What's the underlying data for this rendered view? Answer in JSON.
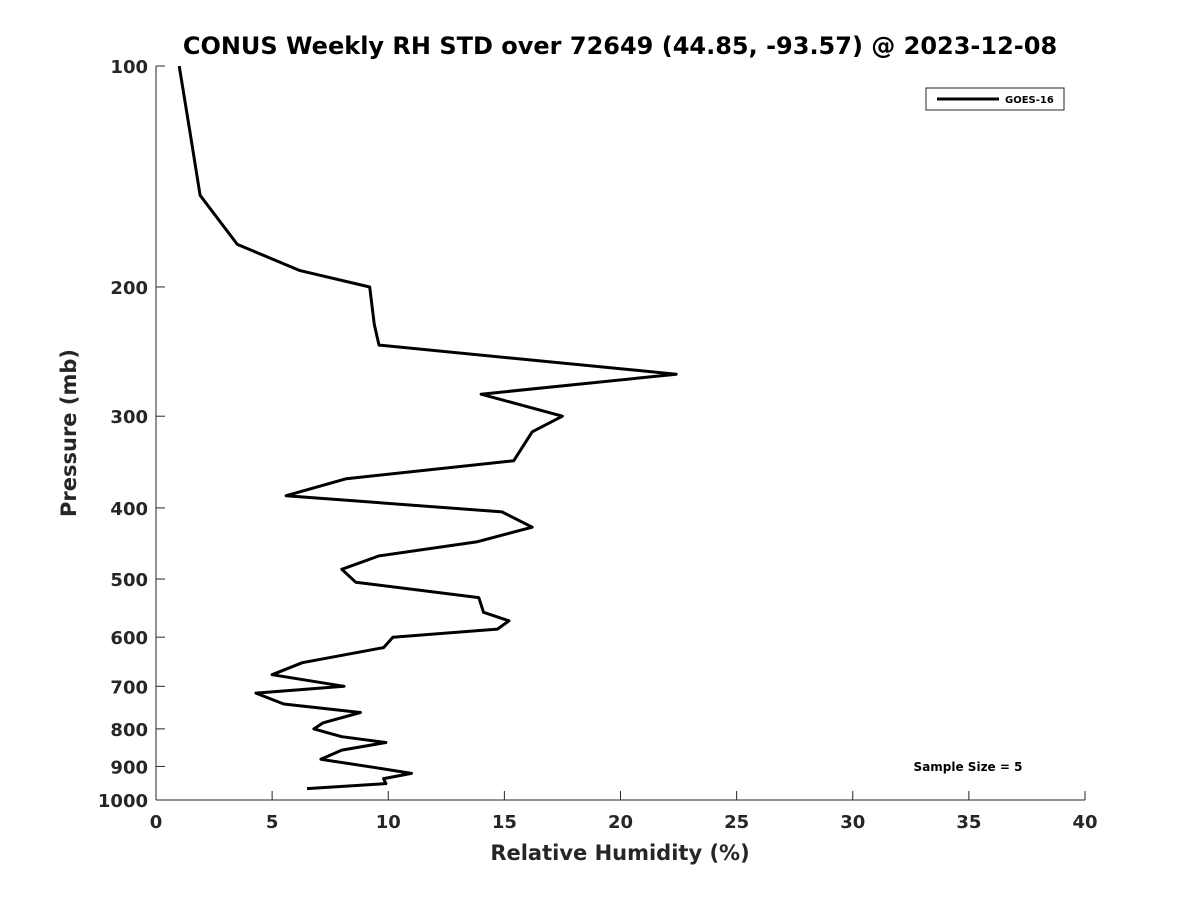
{
  "chart_data": {
    "type": "line",
    "title": "CONUS Weekly RH STD over 72649 (44.85, -93.57) @ 2023-12-08",
    "xlabel": "Relative Humidity (%)",
    "ylabel": "Pressure (mb)",
    "xlim": [
      0,
      40
    ],
    "ylim": [
      100,
      1000
    ],
    "y_scale": "log",
    "y_reversed": true,
    "x_ticks": [
      0,
      5,
      10,
      15,
      20,
      25,
      30,
      35,
      40
    ],
    "y_ticks": [
      100,
      200,
      300,
      400,
      500,
      600,
      700,
      800,
      900,
      1000
    ],
    "grid": false,
    "legend": {
      "placement": "top-right",
      "entries": [
        "GOES-16"
      ]
    },
    "annotations": [
      {
        "text": "Sample Size = 5",
        "placement": "bottom-right"
      }
    ],
    "series": [
      {
        "name": "GOES-16",
        "color": "#000000",
        "points": [
          [
            1.0,
            100
          ],
          [
            1.5,
            125
          ],
          [
            1.9,
            150
          ],
          [
            3.5,
            175
          ],
          [
            6.2,
            190
          ],
          [
            9.2,
            200
          ],
          [
            9.4,
            225
          ],
          [
            9.6,
            240
          ],
          [
            22.4,
            263
          ],
          [
            14.0,
            280
          ],
          [
            17.5,
            300
          ],
          [
            16.2,
            315
          ],
          [
            15.4,
            345
          ],
          [
            8.2,
            365
          ],
          [
            5.6,
            385
          ],
          [
            14.9,
            405
          ],
          [
            16.2,
            425
          ],
          [
            13.8,
            445
          ],
          [
            9.6,
            465
          ],
          [
            8.0,
            485
          ],
          [
            8.6,
            505
          ],
          [
            13.9,
            530
          ],
          [
            14.1,
            555
          ],
          [
            15.2,
            570
          ],
          [
            14.7,
            585
          ],
          [
            10.2,
            600
          ],
          [
            9.8,
            620
          ],
          [
            6.3,
            650
          ],
          [
            5.0,
            675
          ],
          [
            8.1,
            700
          ],
          [
            4.3,
            715
          ],
          [
            5.5,
            740
          ],
          [
            8.8,
            760
          ],
          [
            7.2,
            785
          ],
          [
            6.8,
            800
          ],
          [
            8.0,
            820
          ],
          [
            9.9,
            835
          ],
          [
            8.0,
            855
          ],
          [
            7.1,
            880
          ],
          [
            9.6,
            905
          ],
          [
            11.0,
            920
          ],
          [
            9.8,
            935
          ],
          [
            9.9,
            950
          ],
          [
            6.5,
            965
          ]
        ]
      }
    ]
  }
}
